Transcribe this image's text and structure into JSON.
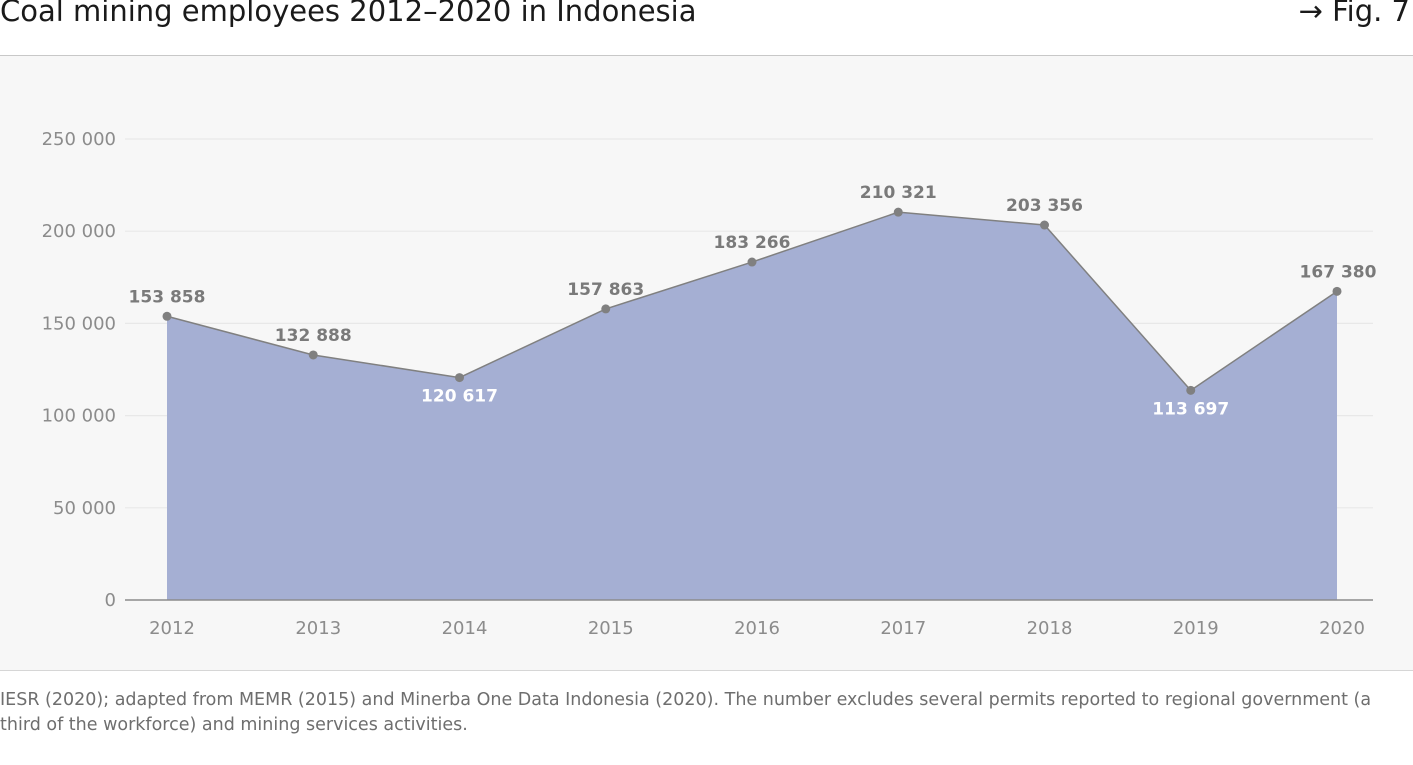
{
  "header": {
    "title": "Coal mining employees 2012–2020 in Indonesia",
    "figure_ref": "→ Fig. 7"
  },
  "source_note": "IESR (2020); adapted from MEMR (2015) and Minerba One Data Indonesia (2020). The number excludes several permits reported to regional government (a third of the workforce) and mining services activities.",
  "colors": {
    "area_fill": "#a5afd3",
    "line": "#808080",
    "marker": "#808080",
    "grid": "#e8e8e8",
    "axis": "#8c8c8c",
    "tick_label": "#8c8c8c",
    "value_label_outside": "#7a7a7a",
    "value_label_inside": "#ffffff",
    "plot_background": "#f7f7f7"
  },
  "chart_data": {
    "type": "area",
    "categories": [
      "2012",
      "2013",
      "2014",
      "2015",
      "2016",
      "2017",
      "2018",
      "2019",
      "2020"
    ],
    "values": [
      153858,
      132888,
      120617,
      157863,
      183266,
      210321,
      203356,
      113697,
      167380
    ],
    "value_labels": [
      "153 858",
      "132 888",
      "120 617",
      "157 863",
      "183 266",
      "210 321",
      "203 356",
      "113 697",
      "167 380"
    ],
    "value_label_inside": [
      false,
      false,
      true,
      false,
      false,
      false,
      false,
      true,
      false
    ],
    "ylim": [
      0,
      250000
    ],
    "yticks": [
      0,
      50000,
      100000,
      150000,
      200000,
      250000
    ],
    "ytick_labels": [
      "0",
      "50 000",
      "100 000",
      "150 000",
      "200 000",
      "250 000"
    ],
    "grid": true,
    "title": "Coal mining employees 2012–2020 in Indonesia",
    "xlabel": "",
    "ylabel": ""
  }
}
